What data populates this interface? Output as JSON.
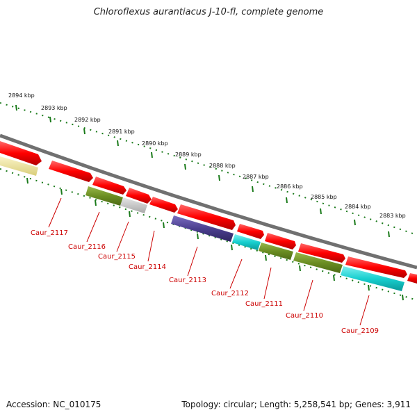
{
  "title": "Chloroflexus aurantiacus J-10-fl, complete genome",
  "footer": {
    "accession": "Accession: NC_010175",
    "stats": "Topology: circular; Length: 5,258,541 bp; Genes: 3,911"
  },
  "kbp_labels": [
    "2894 kbp",
    "2893 kbp",
    "2892 kbp",
    "2891 kbp",
    "2890 kbp",
    "2889 kbp",
    "2888 kbp",
    "2887 kbp",
    "2886 kbp",
    "2885 kbp",
    "2884 kbp",
    "2883 kbp"
  ],
  "gene_labels": [
    "Caur_2117",
    "Caur_2116",
    "Caur_2115",
    "Caur_2114",
    "Caur_2113",
    "Caur_2112",
    "Caur_2111",
    "Caur_2110",
    "Caur_2109"
  ],
  "colors": {
    "backbone": "#888888",
    "tick": "#1a7a1a",
    "label_red": "#cc0000",
    "forward": "#ff0000",
    "olive": "#6b8e23",
    "gray": "#c8c8c8",
    "purple": "#4b3f8f",
    "cyan": "#17cfcf",
    "pale_yellow": "#f2e9a0"
  }
}
